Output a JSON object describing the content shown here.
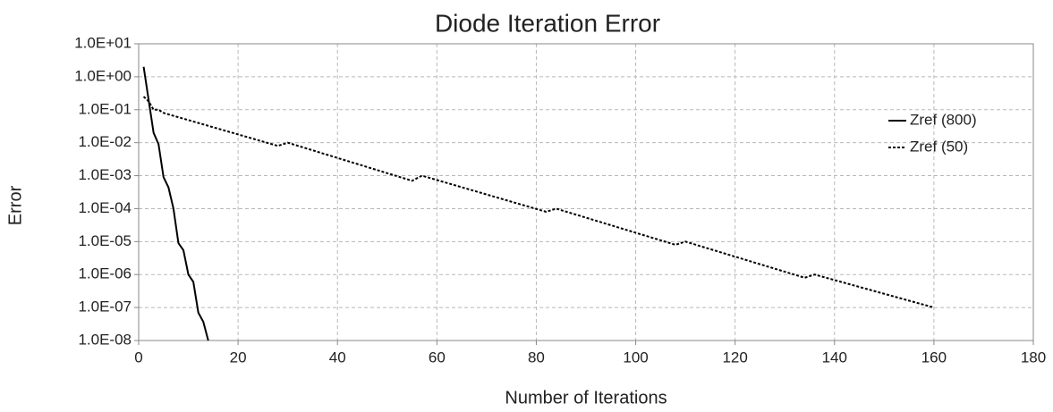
{
  "chart_data": {
    "type": "line",
    "title": "Diode Iteration Error",
    "xlabel": "Number of Iterations",
    "ylabel": "Error",
    "xlim": [
      0,
      180
    ],
    "xticks": [
      0,
      20,
      40,
      60,
      80,
      100,
      120,
      140,
      160,
      180
    ],
    "ylim": [
      1e-08,
      10
    ],
    "yscale": "log",
    "yticks": [
      {
        "value": 10,
        "label": "1.0E+01"
      },
      {
        "value": 1,
        "label": "1.0E+00"
      },
      {
        "value": 0.1,
        "label": "1.0E-01"
      },
      {
        "value": 0.01,
        "label": "1.0E-02"
      },
      {
        "value": 0.001,
        "label": "1.0E-03"
      },
      {
        "value": 0.0001,
        "label": "1.0E-04"
      },
      {
        "value": 1e-05,
        "label": "1.0E-05"
      },
      {
        "value": 1e-06,
        "label": "1.0E-06"
      },
      {
        "value": 1e-07,
        "label": "1.0E-07"
      },
      {
        "value": 1e-08,
        "label": "1.0E-08"
      }
    ],
    "grid": true,
    "legend": "upper right",
    "series": [
      {
        "name": "Zref (800)",
        "color": "#000000",
        "line_style": "solid",
        "x": [
          1,
          2,
          3,
          4,
          5,
          6,
          7,
          8,
          9,
          10,
          11,
          12,
          13,
          14
        ],
        "values": [
          2,
          0.2,
          0.02,
          0.009,
          0.0009,
          0.00044,
          0.0001,
          9e-06,
          5.5e-06,
          1e-06,
          6e-07,
          7e-08,
          3.7e-08,
          1e-08
        ]
      },
      {
        "name": "Zref (50)",
        "color": "#000000",
        "line_style": "dotted",
        "x": [
          1,
          2,
          3,
          4,
          5,
          28,
          30,
          55,
          57,
          82,
          84,
          108,
          110,
          134,
          136,
          160
        ],
        "values": [
          0.25,
          0.18,
          0.1,
          0.1,
          0.08,
          0.008,
          0.01,
          0.0007,
          0.001,
          8e-05,
          0.0001,
          8e-06,
          1e-05,
          8e-07,
          1e-06,
          1e-07
        ]
      }
    ]
  }
}
